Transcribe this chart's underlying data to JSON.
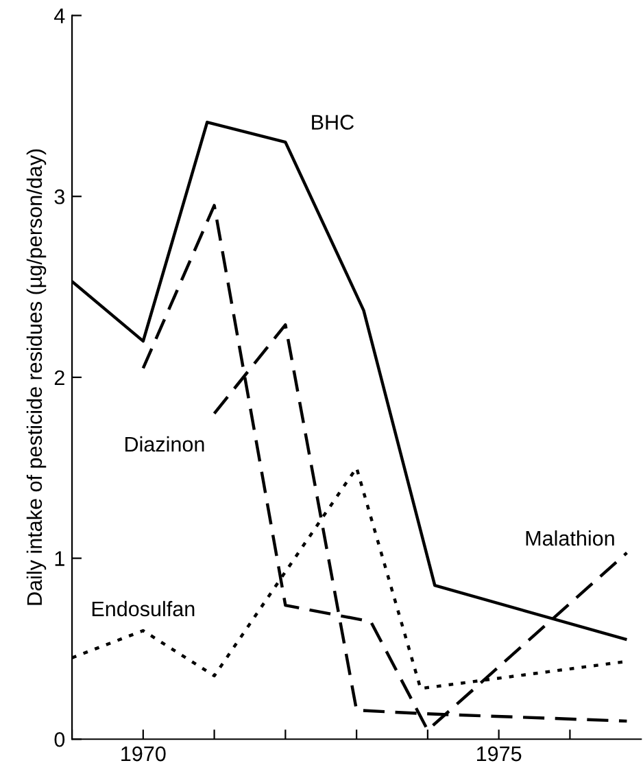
{
  "chart_data": {
    "type": "line",
    "ylabel": "Daily intake of pesticide residues (µg/person/day)",
    "xlim": [
      1969,
      1977
    ],
    "ylim": [
      0,
      4
    ],
    "xticks": [
      {
        "value": 1969,
        "label": null
      },
      1970,
      {
        "value": 1971,
        "label": null
      },
      {
        "value": 1972,
        "label": null
      },
      {
        "value": 1973,
        "label": null
      },
      {
        "value": 1974,
        "label": null
      },
      1975,
      {
        "value": 1976,
        "label": null
      }
    ],
    "yticks": [
      0,
      1,
      2,
      3,
      4
    ],
    "grid": false,
    "legend": false,
    "marker": "none",
    "series": [
      {
        "name": "BHC",
        "color": "#000000",
        "line_style": "solid",
        "x": [
          1969,
          1970,
          1970.9,
          1972,
          1973.1,
          1974.1,
          1976.8
        ],
        "values": [
          2.53,
          2.2,
          3.41,
          3.3,
          2.37,
          0.85,
          0.55
        ]
      },
      {
        "name": "Diazinon",
        "color": "#000000",
        "line_style": "dashed",
        "x": [
          1971,
          1972,
          1973,
          1974,
          1976.8
        ],
        "values": [
          1.8,
          2.29,
          0.16,
          0.14,
          0.1
        ]
      },
      {
        "name": "Malathion",
        "color": "#000000",
        "line_style": "dashed",
        "x": [
          1970,
          1971,
          1972,
          1973.2,
          1974,
          1976.8
        ],
        "values": [
          2.05,
          2.95,
          0.74,
          0.65,
          0.05,
          1.03
        ]
      },
      {
        "name": "Endosulfan",
        "color": "#000000",
        "line_style": "dotted",
        "x": [
          1969,
          1970,
          1971,
          1973,
          1973.9,
          1976.8
        ],
        "values": [
          0.45,
          0.6,
          0.35,
          1.5,
          0.28,
          0.43
        ]
      }
    ]
  }
}
